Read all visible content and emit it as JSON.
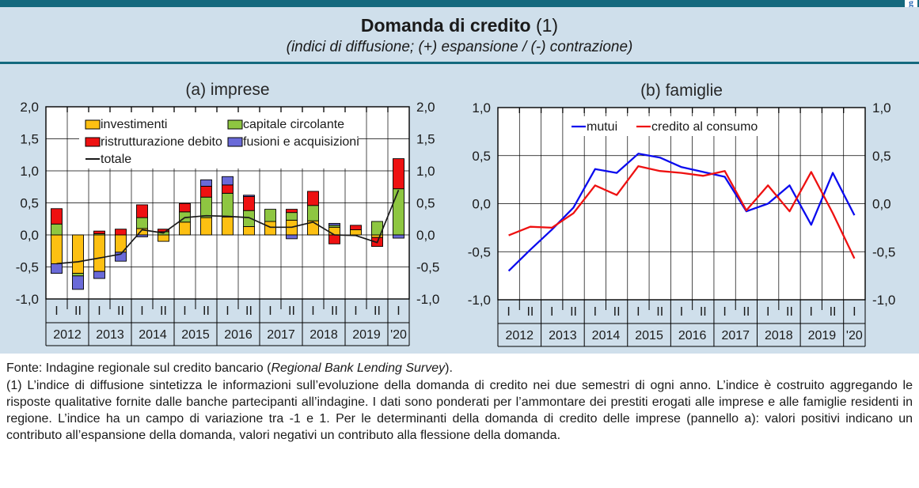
{
  "header": {
    "title": "Domanda di credito",
    "title_ref": "(1)",
    "subtitle": "(indici di diffusione; (+) espansione / (-) contrazione)"
  },
  "x_axis": {
    "years": [
      {
        "label": "2012",
        "sems": [
          "I",
          "II"
        ]
      },
      {
        "label": "2013",
        "sems": [
          "I",
          "II"
        ]
      },
      {
        "label": "2014",
        "sems": [
          "I",
          "II"
        ]
      },
      {
        "label": "2015",
        "sems": [
          "I",
          "II"
        ]
      },
      {
        "label": "2016",
        "sems": [
          "I",
          "II"
        ]
      },
      {
        "label": "2017",
        "sems": [
          "I",
          "II"
        ]
      },
      {
        "label": "2018",
        "sems": [
          "I",
          "II"
        ]
      },
      {
        "label": "2019",
        "sems": [
          "I",
          "II"
        ]
      },
      {
        "label": "'20",
        "sems": [
          "I"
        ]
      }
    ]
  },
  "chart_data": [
    {
      "type": "bar",
      "title": "(a) imprese",
      "stacked": true,
      "ylim": [
        -1.0,
        2.0
      ],
      "ytick_step": 0.5,
      "yticks": [
        "2,0",
        "1,5",
        "1,0",
        "0,5",
        "0,0",
        "-0,5",
        "-1,0"
      ],
      "grid": true,
      "legend_position": "top-left-inside",
      "categories": [
        "2012-I",
        "2012-II",
        "2013-I",
        "2013-II",
        "2014-I",
        "2014-II",
        "2015-I",
        "2015-II",
        "2016-I",
        "2016-II",
        "2017-I",
        "2017-II",
        "2018-I",
        "2018-II",
        "2019-I",
        "2019-II",
        "2020-I"
      ],
      "series": [
        {
          "name": "investimenti",
          "color": "#fdc012",
          "values": [
            -0.45,
            -0.6,
            -0.57,
            -0.27,
            0.1,
            -0.1,
            0.2,
            0.27,
            0.28,
            0.13,
            0.21,
            0.23,
            0.22,
            0.12,
            0.08,
            -0.04,
            0.0
          ]
        },
        {
          "name": "capitale circolante",
          "color": "#8ec641",
          "values": [
            0.17,
            -0.04,
            0.02,
            0.0,
            0.17,
            0.05,
            0.16,
            0.32,
            0.37,
            0.25,
            0.19,
            0.12,
            0.24,
            0.03,
            0.0,
            0.21,
            0.72
          ]
        },
        {
          "name": "ristrutturazione debito",
          "color": "#ee1111",
          "values": [
            0.24,
            0.0,
            0.04,
            0.09,
            0.2,
            0.04,
            0.13,
            0.17,
            0.13,
            0.22,
            0.0,
            0.05,
            0.22,
            -0.14,
            0.07,
            -0.14,
            0.47
          ]
        },
        {
          "name": "fusioni e acquisizioni",
          "color": "#6a6ad8",
          "values": [
            -0.15,
            -0.21,
            -0.11,
            -0.14,
            -0.03,
            0.0,
            0.0,
            0.1,
            0.13,
            0.02,
            0.0,
            -0.06,
            0.0,
            0.03,
            0.0,
            0.0,
            -0.05
          ]
        }
      ],
      "line": {
        "name": "totale",
        "color": "#1a1a1a",
        "values": [
          -0.45,
          -0.42,
          -0.36,
          -0.3,
          0.08,
          0.03,
          0.27,
          0.3,
          0.29,
          0.27,
          0.12,
          0.12,
          0.2,
          0.0,
          -0.01,
          -0.12,
          0.7
        ]
      }
    },
    {
      "type": "line",
      "title": "(b) famiglie",
      "ylim": [
        -1.0,
        1.0
      ],
      "ytick_step": 0.5,
      "yticks": [
        "1,0",
        "0,5",
        "0,0",
        "-0,5",
        "-1,0"
      ],
      "grid": true,
      "legend_position": "top-center-inside",
      "categories": [
        "2012-I",
        "2012-II",
        "2013-I",
        "2013-II",
        "2014-I",
        "2014-II",
        "2015-I",
        "2015-II",
        "2016-I",
        "2016-II",
        "2017-I",
        "2017-II",
        "2018-I",
        "2018-II",
        "2019-I",
        "2019-II",
        "2020-I"
      ],
      "series": [
        {
          "name": "mutui",
          "color": "#0b0bee",
          "values": [
            -0.7,
            -0.48,
            -0.27,
            -0.04,
            0.36,
            0.32,
            0.52,
            0.48,
            0.38,
            0.33,
            0.28,
            -0.08,
            0.0,
            0.19,
            -0.22,
            0.32,
            -0.12
          ]
        },
        {
          "name": "credito al consumo",
          "color": "#ee1111",
          "values": [
            -0.33,
            -0.24,
            -0.25,
            -0.1,
            0.19,
            0.09,
            0.39,
            0.34,
            0.32,
            0.29,
            0.34,
            -0.07,
            0.19,
            -0.08,
            0.33,
            -0.1,
            -0.57
          ]
        }
      ]
    }
  ],
  "colors": {
    "band": "#14697e",
    "panel_background": "#cfdfeb",
    "plot_background": "#ffffff",
    "grid": "#000000"
  },
  "footer": {
    "fonte_prefix": "Fonte: Indagine regionale sul credito bancario (",
    "fonte_italic": "Regional Bank Lending Survey",
    "fonte_suffix": ").",
    "note": "(1) L’indice di diffusione sintetizza le informazioni sull’evoluzione della domanda di credito nei due semestri di ogni anno. L’indice è costruito aggregando le risposte qualitative fornite dalle banche partecipanti all’indagine. I dati sono ponderati per l’ammontare dei prestiti erogati alle imprese e alle famiglie residenti in regione. L’indice ha un campo di variazione tra -1 e 1. Per le determinanti della domanda di credito delle imprese (pannello a): valori positivi indicano un contributo all’espansione della domanda, valori negativi un contributo alla flessione della domanda."
  }
}
